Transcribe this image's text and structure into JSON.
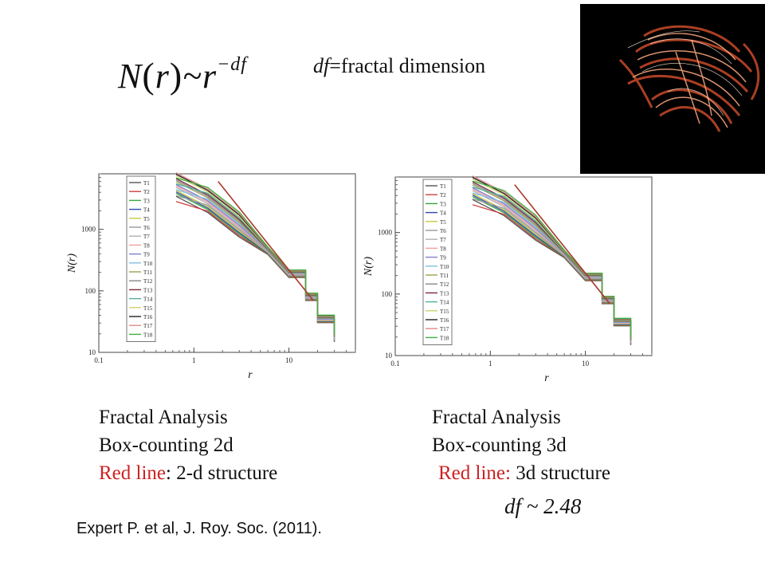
{
  "slide": {
    "formula": {
      "lhs": "N",
      "arg": "r",
      "tilde": "~",
      "base": "r",
      "exponent": "−df"
    },
    "definition": {
      "symbol": "df",
      "text": "=fractal dimension"
    },
    "left_caption": {
      "line1": "Fractal Analysis",
      "line2": "Box-counting 2d",
      "red": "Red line",
      "rest": ": 2-d structure"
    },
    "right_caption": {
      "line1": "Fractal Analysis",
      "line2": "Box-counting 3d",
      "red": "Red line:",
      "rest": " 3d structure"
    },
    "df_value": "df ~ 2.48",
    "reference": "Expert P. et al, J. Roy. Soc. (2011)."
  },
  "chart_data": [
    {
      "type": "line",
      "title": "",
      "xlabel": "r",
      "ylabel": "N(r)",
      "xscale": "log",
      "yscale": "log",
      "xlim": [
        0.1,
        50
      ],
      "ylim": [
        10,
        8000
      ],
      "x_ticks": [
        "0.1",
        "1",
        "10"
      ],
      "y_ticks": [
        "10",
        "100",
        "1000"
      ],
      "legend_position": "top-left",
      "legend": [
        "T1",
        "T2",
        "T3",
        "T4",
        "T5",
        "T6",
        "T7",
        "T8",
        "T9",
        "T10",
        "T11",
        "T12",
        "T13",
        "T14",
        "T15",
        "T16",
        "T17",
        "T18"
      ],
      "series_colors": [
        "#555555",
        "#d04040",
        "#3aa53a",
        "#3048b0",
        "#c8c840",
        "#9a9a9a",
        "#b0b0b0",
        "#f0a0a0",
        "#8080d0",
        "#80c0e0",
        "#a0a050",
        "#888888",
        "#7a2a3a",
        "#50b0a0",
        "#cfd070",
        "#222222",
        "#e08a8a",
        "#40b040"
      ],
      "series_x": [
        0.65,
        1.4,
        3,
        6,
        10,
        15,
        20,
        30
      ],
      "series_y": [
        5500,
        3000,
        1200,
        450,
        190,
        80,
        35,
        17
      ],
      "reference_line": {
        "color": "#a83a2a",
        "x": [
          1.8,
          18
        ],
        "y": [
          6000,
          70
        ]
      }
    },
    {
      "type": "line",
      "title": "",
      "xlabel": "r",
      "ylabel": "N(r)",
      "xscale": "log",
      "yscale": "log",
      "xlim": [
        0.1,
        50
      ],
      "ylim": [
        10,
        8000
      ],
      "x_ticks": [
        "0.1",
        "1",
        "10"
      ],
      "y_ticks": [
        "10",
        "100",
        "1000"
      ],
      "legend_position": "top-left",
      "legend": [
        "T1",
        "T2",
        "T3",
        "T4",
        "T5",
        "T6",
        "T7",
        "T8",
        "T9",
        "T10",
        "T11",
        "T12",
        "T13",
        "T14",
        "T15",
        "T16",
        "T17",
        "T18"
      ],
      "series_colors": [
        "#555555",
        "#d04040",
        "#3aa53a",
        "#3048b0",
        "#c8c840",
        "#9a9a9a",
        "#b0b0b0",
        "#f0a0a0",
        "#8080d0",
        "#80c0e0",
        "#a0a050",
        "#888888",
        "#7a2a3a",
        "#50b0a0",
        "#cfd070",
        "#222222",
        "#e08a8a",
        "#40b040"
      ],
      "series_x": [
        0.65,
        1.4,
        3,
        6,
        10,
        15,
        20,
        30
      ],
      "series_y": [
        5500,
        3000,
        1200,
        450,
        190,
        80,
        35,
        17
      ],
      "reference_line": {
        "color": "#a83a2a",
        "x": [
          1.8,
          18
        ],
        "y": [
          6000,
          70
        ]
      }
    }
  ]
}
